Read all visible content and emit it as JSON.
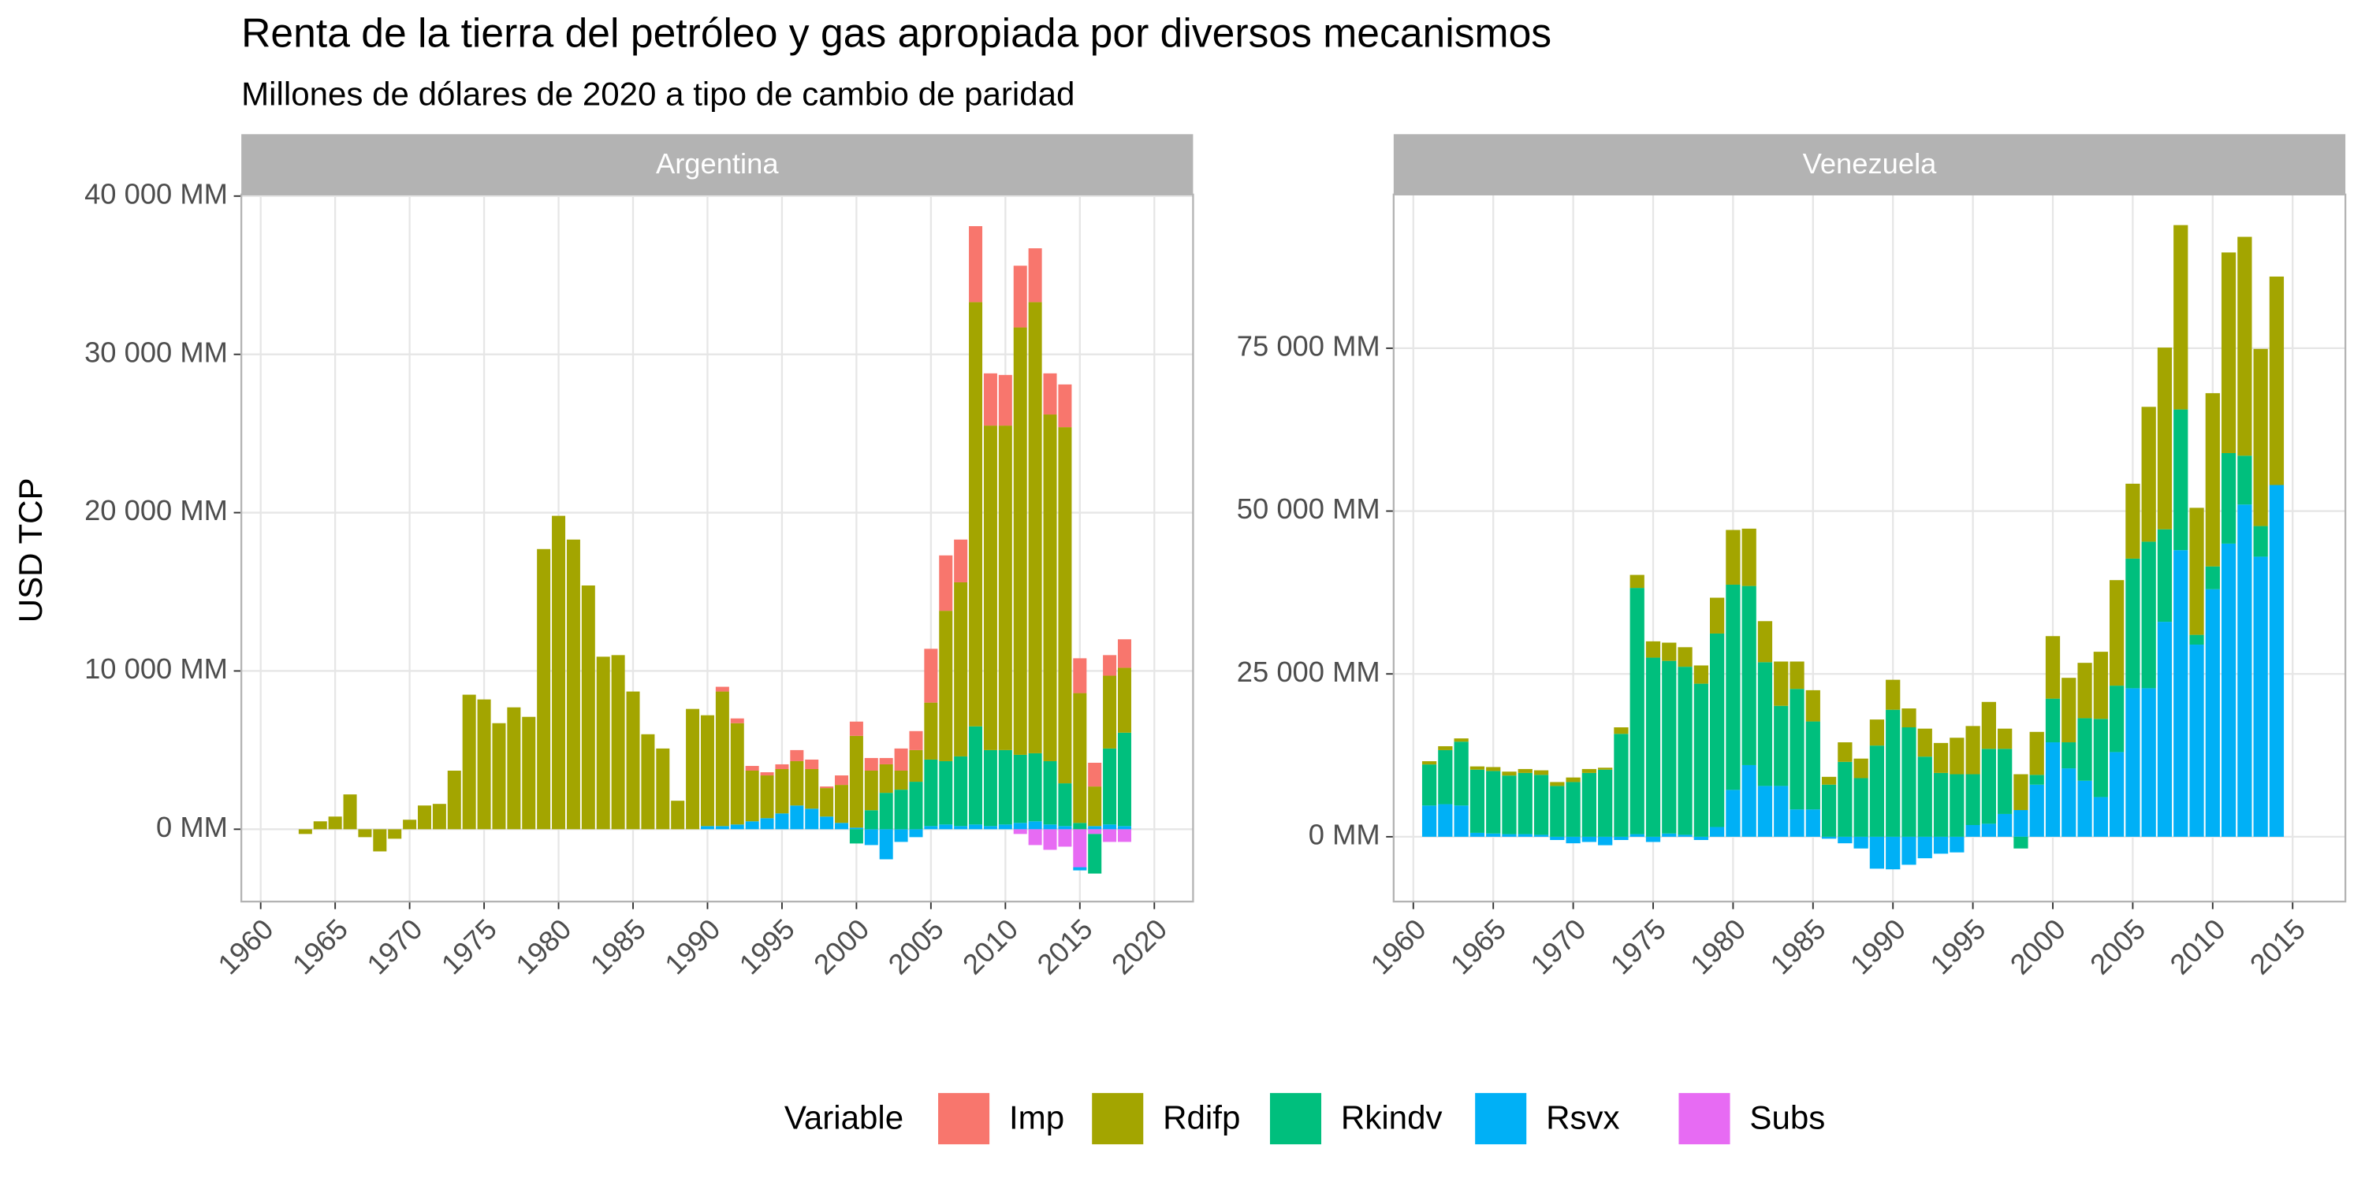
{
  "title": "Renta de la tierra del petróleo y gas apropiada por diversos mecanismos",
  "subtitle": "Millones de dólares de 2020 a tipo de cambio de paridad",
  "y_label": "USD TCP",
  "legend_title": "Variable",
  "chart_data": [
    {
      "type": "bar",
      "stacked": true,
      "strip": "Argentina",
      "grid": true,
      "x": [
        1963,
        1964,
        1965,
        1966,
        1967,
        1968,
        1969,
        1970,
        1971,
        1972,
        1973,
        1974,
        1975,
        1976,
        1977,
        1978,
        1979,
        1980,
        1981,
        1982,
        1983,
        1984,
        1985,
        1986,
        1987,
        1988,
        1989,
        1990,
        1991,
        1992,
        1993,
        1994,
        1995,
        1996,
        1997,
        1998,
        1999,
        2000,
        2001,
        2002,
        2003,
        2004,
        2005,
        2006,
        2007,
        2008,
        2009,
        2010,
        2011,
        2012,
        2013,
        2014,
        2015,
        2016,
        2017,
        2018
      ],
      "xlim": [
        1958.7,
        2022.6
      ],
      "xticks": [
        1960,
        1965,
        1970,
        1975,
        1980,
        1985,
        1990,
        1995,
        2000,
        2005,
        2010,
        2015,
        2020
      ],
      "ylim": [
        -4570,
        40100
      ],
      "yticks": [
        {
          "value": 0,
          "label": "0 MM"
        },
        {
          "value": 10000,
          "label": "10 000 MM"
        },
        {
          "value": 20000,
          "label": "20 000 MM"
        },
        {
          "value": 30000,
          "label": "30 000 MM"
        },
        {
          "value": 40000,
          "label": "40 000 MM"
        }
      ],
      "series": [
        {
          "name": "Imp",
          "color": "#F8766D",
          "values": [
            0,
            0,
            0,
            0,
            0,
            0,
            0,
            0,
            0,
            0,
            0,
            0,
            0,
            0,
            0,
            0,
            0,
            0,
            0,
            0,
            0,
            0,
            0,
            0,
            0,
            0,
            0,
            0,
            300,
            300,
            300,
            200,
            300,
            700,
            600,
            100,
            600,
            900,
            800,
            400,
            1400,
            1200,
            3400,
            3500,
            2700,
            4800,
            3300,
            3200,
            3900,
            3400,
            2600,
            2700,
            2200,
            1500,
            1300,
            1800
          ]
        },
        {
          "name": "Rdifp",
          "color": "#A3A500",
          "values": [
            -300,
            500,
            800,
            2200,
            -500,
            -1400,
            -600,
            600,
            1500,
            1600,
            3700,
            8500,
            8200,
            6700,
            7700,
            7100,
            17700,
            19800,
            18300,
            15400,
            10900,
            11000,
            8700,
            6000,
            5100,
            1800,
            7600,
            7000,
            8500,
            6400,
            3200,
            2700,
            2800,
            2800,
            2500,
            1800,
            2400,
            5800,
            2500,
            1800,
            1200,
            2000,
            3600,
            9500,
            11000,
            26800,
            20500,
            20500,
            27000,
            28500,
            21900,
            22500,
            8200,
            2500,
            4600,
            4100
          ]
        },
        {
          "name": "Rkindv",
          "color": "#00BF7D",
          "values": [
            0,
            0,
            0,
            0,
            0,
            0,
            0,
            0,
            0,
            0,
            0,
            0,
            0,
            0,
            0,
            0,
            0,
            0,
            0,
            0,
            0,
            0,
            0,
            0,
            0,
            0,
            0,
            0,
            0,
            0,
            0,
            0,
            0,
            0,
            0,
            0,
            0,
            -900,
            1200,
            2300,
            2500,
            3000,
            4200,
            4000,
            4400,
            6200,
            4800,
            4700,
            4300,
            4300,
            4000,
            2700,
            400,
            -2500,
            4800,
            5900
          ]
        },
        {
          "name": "Rsvx",
          "color": "#00B0F6",
          "values": [
            0,
            0,
            0,
            0,
            0,
            0,
            0,
            0,
            0,
            0,
            0,
            0,
            0,
            0,
            0,
            0,
            0,
            0,
            0,
            0,
            0,
            0,
            0,
            0,
            0,
            0,
            0,
            200,
            200,
            300,
            500,
            700,
            1000,
            1500,
            1300,
            800,
            400,
            100,
            -1000,
            -1900,
            -800,
            -500,
            200,
            300,
            200,
            300,
            200,
            300,
            400,
            500,
            300,
            200,
            -200,
            200,
            300,
            200
          ]
        },
        {
          "name": "Subs",
          "color": "#E76BF3",
          "values": [
            0,
            0,
            0,
            0,
            0,
            0,
            0,
            0,
            0,
            0,
            0,
            0,
            0,
            0,
            0,
            0,
            0,
            0,
            0,
            0,
            0,
            0,
            0,
            0,
            0,
            0,
            0,
            0,
            0,
            0,
            0,
            0,
            0,
            0,
            0,
            0,
            0,
            0,
            0,
            0,
            0,
            0,
            0,
            0,
            0,
            0,
            0,
            0,
            -300,
            -1000,
            -1300,
            -1100,
            -2400,
            -300,
            -800,
            -800
          ]
        }
      ]
    },
    {
      "type": "bar",
      "stacked": true,
      "strip": "Venezuela",
      "grid": true,
      "x": [
        1961,
        1962,
        1963,
        1964,
        1965,
        1966,
        1967,
        1968,
        1969,
        1970,
        1971,
        1972,
        1973,
        1974,
        1975,
        1976,
        1977,
        1978,
        1979,
        1980,
        1981,
        1982,
        1983,
        1984,
        1985,
        1986,
        1987,
        1988,
        1989,
        1990,
        1991,
        1992,
        1993,
        1994,
        1995,
        1996,
        1997,
        1998,
        1999,
        2000,
        2001,
        2002,
        2003,
        2004,
        2005,
        2006,
        2007,
        2008,
        2009,
        2010,
        2011,
        2012,
        2013,
        2014
      ],
      "xlim": [
        1958.77,
        2018.3
      ],
      "xticks": [
        1960,
        1965,
        1970,
        1975,
        1980,
        1985,
        1990,
        1995,
        2000,
        2005,
        2010,
        2015
      ],
      "ylim": [
        -9950,
        98600
      ],
      "yticks": [
        {
          "value": 0,
          "label": "0 MM"
        },
        {
          "value": 25000,
          "label": "25 000 MM"
        },
        {
          "value": 50000,
          "label": "50 000 MM"
        },
        {
          "value": 75000,
          "label": "75 000 MM"
        }
      ],
      "series": [
        {
          "name": "Rdifp",
          "color": "#A3A500",
          "values": [
            500,
            600,
            500,
            500,
            600,
            600,
            600,
            700,
            600,
            700,
            600,
            300,
            1000,
            2000,
            2500,
            2800,
            3000,
            2800,
            5500,
            8400,
            8800,
            6300,
            6800,
            4200,
            4800,
            1200,
            3000,
            3000,
            4000,
            4600,
            2900,
            4300,
            4600,
            5600,
            7400,
            7200,
            3100,
            5500,
            6600,
            9600,
            9900,
            8500,
            10300,
            16200,
            11500,
            20700,
            27900,
            28300,
            19500,
            26600,
            30800,
            33600,
            27200,
            32000
          ]
        },
        {
          "name": "Rkindv",
          "color": "#00BF7D",
          "values": [
            6300,
            8300,
            9800,
            9700,
            9600,
            9000,
            9400,
            9200,
            7800,
            8400,
            9800,
            10300,
            15800,
            37800,
            27500,
            26500,
            25800,
            23500,
            29700,
            31500,
            27500,
            19000,
            12300,
            18500,
            13500,
            8000,
            11500,
            9000,
            14000,
            19500,
            16800,
            12300,
            9800,
            9600,
            7800,
            11500,
            10000,
            -1800,
            1500,
            6700,
            4000,
            9600,
            12000,
            10200,
            19900,
            22500,
            14200,
            21600,
            1500,
            3500,
            13900,
            7500,
            4700,
            0
          ]
        },
        {
          "name": "Rsvx",
          "color": "#00B0F6",
          "values": [
            4800,
            5000,
            4800,
            600,
            500,
            400,
            400,
            300,
            -500,
            -1000,
            -800,
            -1300,
            -500,
            400,
            -800,
            500,
            300,
            -500,
            1500,
            7200,
            11000,
            7800,
            7800,
            4200,
            4200,
            -300,
            -1000,
            -1800,
            -4900,
            -5000,
            -4300,
            -3300,
            -2600,
            -2400,
            1800,
            2000,
            3500,
            4100,
            8000,
            14500,
            10500,
            8600,
            6100,
            13000,
            22800,
            22800,
            33000,
            44000,
            29500,
            38000,
            45000,
            51000,
            43000,
            54000
          ]
        }
      ]
    }
  ]
}
